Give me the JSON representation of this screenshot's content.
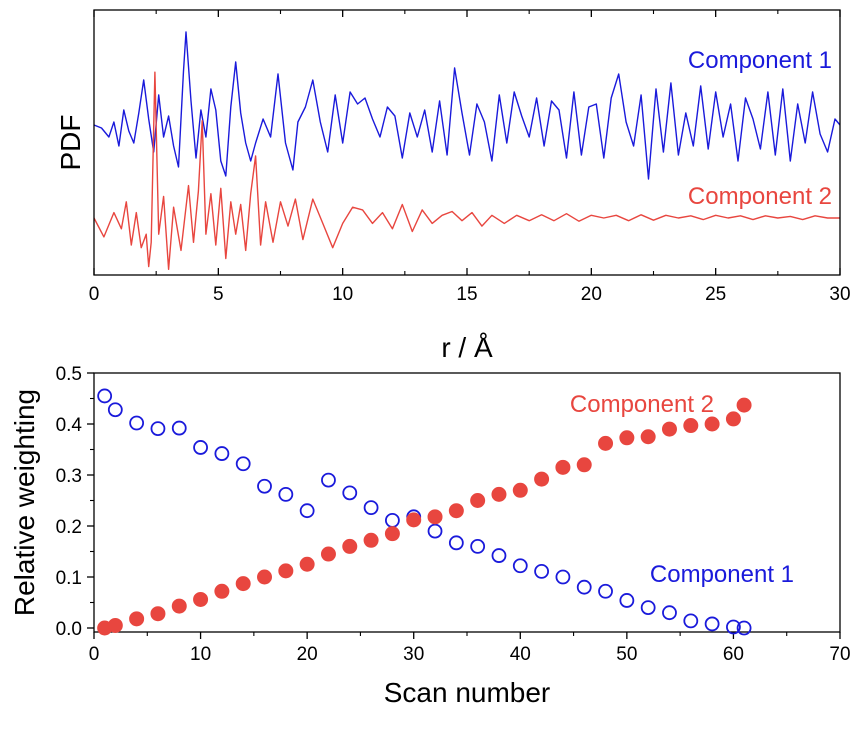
{
  "chart_data": [
    {
      "type": "line",
      "xlabel": "r / Å",
      "ylabel": "PDF",
      "xlim": [
        0,
        30
      ],
      "xticks": [
        "0",
        "5",
        "10",
        "15",
        "20",
        "25",
        "30"
      ],
      "y_tick_labels_shown": false,
      "grid": false,
      "legend_placement": "inline labels",
      "series": [
        {
          "name": "Component 1",
          "color": "#1a1adb",
          "x": [
            0,
            0.3,
            0.6,
            0.8,
            1.0,
            1.2,
            1.4,
            1.6,
            1.8,
            2.0,
            2.2,
            2.4,
            2.6,
            2.8,
            3.0,
            3.2,
            3.4,
            3.6,
            3.7,
            3.9,
            4.1,
            4.3,
            4.5,
            4.7,
            4.9,
            5.1,
            5.3,
            5.5,
            5.7,
            5.9,
            6.1,
            6.3,
            6.5,
            6.8,
            7.1,
            7.4,
            7.7,
            8.0,
            8.2,
            8.5,
            8.8,
            9.1,
            9.4,
            9.7,
            10.0,
            10.3,
            10.6,
            10.9,
            11.2,
            11.5,
            11.8,
            12.1,
            12.4,
            12.7,
            13.0,
            13.3,
            13.6,
            13.9,
            14.2,
            14.5,
            14.8,
            15.1,
            15.4,
            15.7,
            16.0,
            16.3,
            16.6,
            16.9,
            17.2,
            17.5,
            17.8,
            18.1,
            18.4,
            18.7,
            19.0,
            19.3,
            19.6,
            19.9,
            20.2,
            20.5,
            20.8,
            21.1,
            21.4,
            21.7,
            22.0,
            22.3,
            22.6,
            22.9,
            23.2,
            23.5,
            23.8,
            24.1,
            24.4,
            24.7,
            25.0,
            25.3,
            25.6,
            25.9,
            26.2,
            26.5,
            26.8,
            27.1,
            27.4,
            27.7,
            28.0,
            28.3,
            28.6,
            28.9,
            29.2,
            29.5,
            29.8,
            30.0
          ],
          "y": [
            0.0,
            -0.05,
            -0.2,
            0.05,
            -0.35,
            0.25,
            -0.1,
            -0.3,
            0.2,
            0.75,
            0.1,
            -0.45,
            0.5,
            -0.2,
            0.15,
            -0.35,
            -0.7,
            0.9,
            1.55,
            0.4,
            -0.55,
            0.25,
            -0.2,
            0.6,
            0.25,
            -0.6,
            -0.85,
            0.3,
            1.05,
            0.2,
            -0.3,
            -0.6,
            -0.3,
            0.1,
            -0.2,
            0.85,
            -0.3,
            -0.75,
            0.05,
            0.3,
            0.75,
            0.05,
            -0.45,
            0.5,
            -0.3,
            0.55,
            0.35,
            0.45,
            0.1,
            -0.2,
            0.3,
            0.15,
            -0.55,
            0.2,
            -0.2,
            0.25,
            -0.45,
            0.4,
            -0.5,
            0.95,
            0.2,
            -0.5,
            0.35,
            0.05,
            -0.6,
            0.5,
            -0.3,
            0.55,
            0.15,
            -0.2,
            0.45,
            -0.35,
            0.4,
            0.25,
            -0.55,
            0.55,
            -0.5,
            0.3,
            0.35,
            -0.55,
            0.45,
            0.85,
            0.05,
            -0.35,
            0.5,
            -0.9,
            0.6,
            -0.45,
            0.7,
            -0.5,
            0.2,
            -0.35,
            0.65,
            -0.4,
            0.55,
            -0.2,
            0.35,
            -0.6,
            0.45,
            0.1,
            -0.4,
            0.55,
            -0.5,
            0.6,
            -0.6,
            0.35,
            -0.3,
            0.55,
            -0.15,
            -0.45,
            0.1,
            0.0
          ]
        },
        {
          "name": "Component 2",
          "color": "#e8463f",
          "x": [
            0,
            0.4,
            0.8,
            1.1,
            1.3,
            1.5,
            1.7,
            1.9,
            2.1,
            2.2,
            2.3,
            2.45,
            2.6,
            2.8,
            3.0,
            3.2,
            3.5,
            3.8,
            4.0,
            4.2,
            4.35,
            4.5,
            4.7,
            4.9,
            5.1,
            5.3,
            5.5,
            5.7,
            5.9,
            6.1,
            6.3,
            6.5,
            6.7,
            6.9,
            7.2,
            7.5,
            7.8,
            8.1,
            8.4,
            8.8,
            9.2,
            9.6,
            10.0,
            10.4,
            10.8,
            11.2,
            11.6,
            12.0,
            12.4,
            12.8,
            13.2,
            13.6,
            14.0,
            14.4,
            14.8,
            15.2,
            15.6,
            16.0,
            16.5,
            17.0,
            17.5,
            18.0,
            18.5,
            19.0,
            19.5,
            20.0,
            20.5,
            21.0,
            21.5,
            22.0,
            22.5,
            23.0,
            23.5,
            24.0,
            24.5,
            25.0,
            25.5,
            26.0,
            26.5,
            27.0,
            27.5,
            28.0,
            28.5,
            29.0,
            29.5,
            30.0
          ],
          "y": [
            0.0,
            -0.35,
            0.1,
            -0.2,
            0.3,
            -0.5,
            0.1,
            -0.55,
            -0.3,
            -0.9,
            -0.45,
            2.7,
            -0.3,
            0.4,
            -0.95,
            0.2,
            -0.6,
            0.6,
            -0.45,
            0.5,
            1.8,
            -0.3,
            0.45,
            -0.5,
            0.55,
            -0.75,
            0.3,
            -0.3,
            0.25,
            -0.6,
            0.45,
            1.15,
            -0.5,
            0.3,
            -0.45,
            0.3,
            -0.15,
            0.35,
            -0.4,
            0.35,
            -0.1,
            -0.55,
            -0.1,
            0.2,
            0.15,
            -0.1,
            0.1,
            -0.2,
            0.25,
            -0.25,
            0.15,
            -0.1,
            0.05,
            0.12,
            -0.05,
            0.1,
            -0.15,
            0.05,
            -0.1,
            0.05,
            -0.05,
            0.06,
            -0.05,
            0.08,
            -0.06,
            0.05,
            0.0,
            0.05,
            -0.05,
            0.06,
            -0.04,
            0.05,
            0.0,
            0.04,
            -0.03,
            0.05,
            0.0,
            0.04,
            -0.03,
            0.04,
            0.0,
            0.03,
            -0.03,
            0.04,
            0.0,
            0.0
          ]
        }
      ]
    },
    {
      "type": "scatter",
      "xlabel": "Scan number",
      "ylabel": "Relative weighting",
      "xlim": [
        0,
        70
      ],
      "ylim": [
        0,
        0.5
      ],
      "xticks": [
        "0",
        "10",
        "20",
        "30",
        "40",
        "50",
        "60",
        "70"
      ],
      "yticks": [
        "0.0",
        "0.1",
        "0.2",
        "0.3",
        "0.4",
        "0.5"
      ],
      "grid": false,
      "legend_placement": "inline labels",
      "series": [
        {
          "name": "Component 1",
          "color": "#1a1adb",
          "marker": "open-circle",
          "x": [
            1,
            2,
            4,
            6,
            8,
            10,
            12,
            14,
            16,
            18,
            20,
            22,
            24,
            26,
            28,
            30,
            32,
            34,
            36,
            38,
            40,
            42,
            44,
            46,
            48,
            50,
            52,
            54,
            56,
            58,
            60,
            61
          ],
          "y": [
            0.455,
            0.428,
            0.402,
            0.391,
            0.392,
            0.354,
            0.342,
            0.322,
            0.278,
            0.262,
            0.23,
            0.29,
            0.265,
            0.236,
            0.211,
            0.218,
            0.19,
            0.167,
            0.16,
            0.142,
            0.122,
            0.111,
            0.1,
            0.08,
            0.072,
            0.054,
            0.04,
            0.03,
            0.014,
            0.008,
            0.002,
            0.0
          ]
        },
        {
          "name": "Component 2",
          "color": "#e8463f",
          "marker": "filled-circle",
          "x": [
            1,
            2,
            4,
            6,
            8,
            10,
            12,
            14,
            16,
            18,
            20,
            22,
            24,
            26,
            28,
            30,
            32,
            34,
            36,
            38,
            40,
            42,
            44,
            46,
            48,
            50,
            52,
            54,
            56,
            58,
            60,
            61
          ],
          "y": [
            0.0,
            0.005,
            0.018,
            0.028,
            0.043,
            0.056,
            0.072,
            0.087,
            0.1,
            0.112,
            0.125,
            0.145,
            0.16,
            0.172,
            0.185,
            0.212,
            0.218,
            0.23,
            0.25,
            0.262,
            0.27,
            0.292,
            0.315,
            0.32,
            0.362,
            0.373,
            0.375,
            0.39,
            0.397,
            0.4,
            0.41,
            0.437
          ]
        }
      ]
    }
  ]
}
